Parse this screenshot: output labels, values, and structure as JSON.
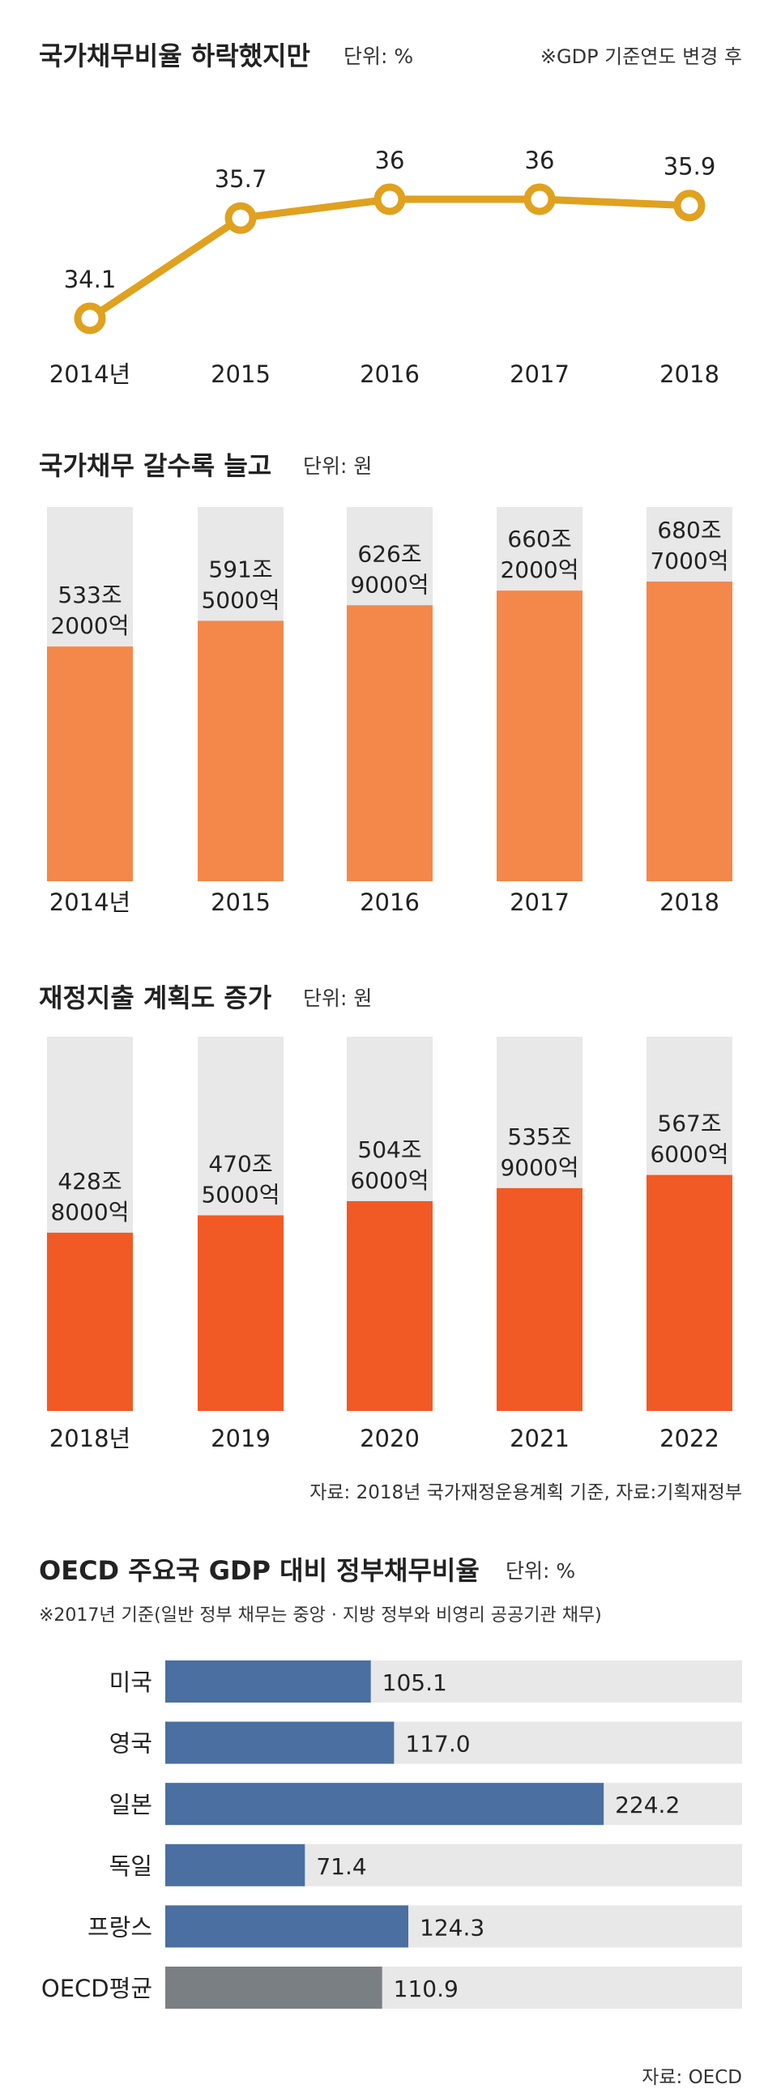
{
  "charts": {
    "line": {
      "title": "국가채무비율 하락했지만",
      "unit": "단위: %",
      "note": "※GDP 기준연도 변경 후",
      "color": "#e0a11f"
    },
    "bar1": {
      "title": "국가채무 갈수록 늘고",
      "unit": "단위: 원",
      "color": "#f4874a",
      "bg": "#e8e8e8"
    },
    "bar2": {
      "title": "재정지출 계획도 증가",
      "unit": "단위: 원",
      "color": "#f15a24",
      "bg": "#e8e8e8",
      "source": "자료: 2018년 국가재정운용계획 기준, 자료:기획재정부"
    },
    "hbar": {
      "title": "OECD 주요국 GDP 대비 정부채무비율",
      "unit": "단위: %",
      "note": "※2017년 기준(일반 정부 채무는 중앙 · 지방 정부와 비영리 공공기관 채무)",
      "color": "#4a6fa0",
      "avg_color": "#7a7f84",
      "bg": "#e8e8e8",
      "source": "자료: OECD"
    }
  },
  "chart_data": [
    {
      "type": "line",
      "title": "국가채무비율 하락했지만",
      "unit": "%",
      "categories": [
        "2014년",
        "2015",
        "2016",
        "2017",
        "2018"
      ],
      "values": [
        34.1,
        35.7,
        36,
        36,
        35.9
      ],
      "value_labels": [
        "34.1",
        "35.7",
        "36",
        "36",
        "35.9"
      ],
      "ylim": [
        33.5,
        36.5
      ]
    },
    {
      "type": "bar",
      "title": "국가채무 갈수록 늘고",
      "unit": "원",
      "categories": [
        "2014년",
        "2015",
        "2016",
        "2017",
        "2018"
      ],
      "values": [
        5332000,
        5915000,
        6269000,
        6602000,
        6807000
      ],
      "value_labels": [
        [
          "533조",
          "2000억"
        ],
        [
          "591조",
          "5000억"
        ],
        [
          "626조",
          "9000억"
        ],
        [
          "660조",
          "2000억"
        ],
        [
          "680조",
          "7000억"
        ]
      ],
      "ylim": [
        0,
        8500000
      ]
    },
    {
      "type": "bar",
      "title": "재정지출 계획도 증가",
      "unit": "원",
      "categories": [
        "2018년",
        "2019",
        "2020",
        "2021",
        "2022"
      ],
      "values": [
        4288000,
        4705000,
        5046000,
        5359000,
        5676000
      ],
      "value_labels": [
        [
          "428조",
          "8000억"
        ],
        [
          "470조",
          "5000억"
        ],
        [
          "504조",
          "6000억"
        ],
        [
          "535조",
          "9000억"
        ],
        [
          "567조",
          "6000억"
        ]
      ],
      "ylim": [
        0,
        9000000
      ]
    },
    {
      "type": "bar",
      "orientation": "horizontal",
      "title": "OECD 주요국 GDP 대비 정부채무비율",
      "unit": "%",
      "categories": [
        "미국",
        "영국",
        "일본",
        "독일",
        "프랑스",
        "OECD평균"
      ],
      "values": [
        105.1,
        117.0,
        224.2,
        71.4,
        124.3,
        110.9
      ],
      "value_labels": [
        "105.1",
        "117.0",
        "224.2",
        "71.4",
        "124.3",
        "110.9"
      ],
      "xlim": [
        0,
        295
      ]
    }
  ]
}
